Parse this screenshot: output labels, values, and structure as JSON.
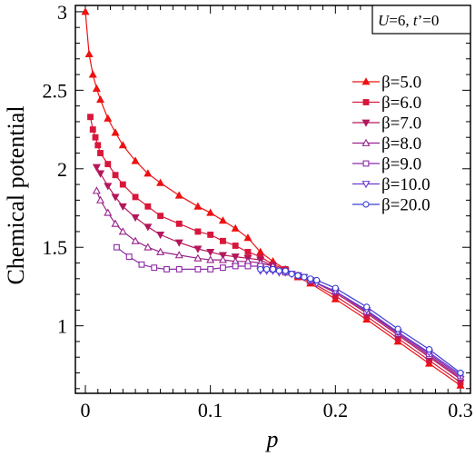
{
  "chart_data": {
    "type": "line",
    "xlabel": "p",
    "ylabel": "Chemical potential",
    "xlim": [
      -0.008,
      0.308
    ],
    "ylim": [
      0.57,
      3.04
    ],
    "x_ticks": [
      0,
      0.1,
      0.2,
      0.3
    ],
    "x_tick_labels": [
      "0",
      "0.1",
      "0.2",
      "0.3"
    ],
    "y_ticks": [
      1,
      1.5,
      2,
      2.5,
      3
    ],
    "y_tick_labels": [
      "1",
      "1.5",
      "2",
      "2.5",
      "3"
    ],
    "annotation": {
      "U": "U",
      "u_rest": "=6, ",
      "t": "t",
      "t_rest": "’=0"
    },
    "legend_position": "right",
    "series": [
      {
        "name": "β=5.0",
        "color": "#ee1111",
        "marker": "triangle-up",
        "x": [
          0.0,
          0.003,
          0.006,
          0.009,
          0.012,
          0.018,
          0.024,
          0.03,
          0.04,
          0.05,
          0.06,
          0.075,
          0.09,
          0.1,
          0.11,
          0.12,
          0.13,
          0.14,
          0.15,
          0.16,
          0.17,
          0.18,
          0.2,
          0.225,
          0.25,
          0.275,
          0.3
        ],
        "y": [
          3.0,
          2.73,
          2.6,
          2.51,
          2.44,
          2.32,
          2.23,
          2.15,
          2.05,
          1.97,
          1.91,
          1.83,
          1.76,
          1.72,
          1.67,
          1.62,
          1.56,
          1.47,
          1.41,
          1.36,
          1.31,
          1.27,
          1.17,
          1.04,
          0.9,
          0.76,
          0.62
        ]
      },
      {
        "name": "β=6.0",
        "color": "#d8173a",
        "marker": "square-filled",
        "x": [
          0.004,
          0.006,
          0.008,
          0.01,
          0.012,
          0.018,
          0.024,
          0.03,
          0.04,
          0.05,
          0.06,
          0.075,
          0.09,
          0.1,
          0.11,
          0.12,
          0.13,
          0.14,
          0.15,
          0.16,
          0.17,
          0.18,
          0.2,
          0.225,
          0.25,
          0.275,
          0.3
        ],
        "y": [
          2.33,
          2.25,
          2.2,
          2.15,
          2.1,
          2.03,
          1.96,
          1.9,
          1.82,
          1.76,
          1.7,
          1.65,
          1.6,
          1.58,
          1.54,
          1.51,
          1.47,
          1.44,
          1.39,
          1.36,
          1.32,
          1.28,
          1.19,
          1.06,
          0.92,
          0.78,
          0.64
        ]
      },
      {
        "name": "β=7.0",
        "color": "#b4175c",
        "marker": "triangle-down",
        "x": [
          0.009,
          0.012,
          0.018,
          0.024,
          0.03,
          0.04,
          0.05,
          0.06,
          0.075,
          0.09,
          0.1,
          0.11,
          0.12,
          0.13,
          0.14,
          0.15,
          0.16,
          0.17,
          0.18,
          0.2,
          0.225,
          0.25,
          0.275,
          0.3
        ],
        "y": [
          2.01,
          1.97,
          1.89,
          1.82,
          1.76,
          1.69,
          1.63,
          1.58,
          1.53,
          1.49,
          1.47,
          1.45,
          1.44,
          1.43,
          1.42,
          1.38,
          1.35,
          1.32,
          1.29,
          1.21,
          1.08,
          0.94,
          0.8,
          0.66
        ]
      },
      {
        "name": "β=8.0",
        "color": "#97218a",
        "marker": "triangle-up-open",
        "x": [
          0.009,
          0.012,
          0.018,
          0.024,
          0.03,
          0.04,
          0.05,
          0.06,
          0.075,
          0.09,
          0.1,
          0.11,
          0.12,
          0.13,
          0.14,
          0.15,
          0.16,
          0.17,
          0.18,
          0.2,
          0.225,
          0.25,
          0.275,
          0.3
        ],
        "y": [
          1.86,
          1.8,
          1.72,
          1.65,
          1.6,
          1.54,
          1.5,
          1.47,
          1.45,
          1.43,
          1.42,
          1.42,
          1.41,
          1.41,
          1.4,
          1.38,
          1.35,
          1.32,
          1.29,
          1.22,
          1.09,
          0.95,
          0.81,
          0.67
        ]
      },
      {
        "name": "β=9.0",
        "color": "#8c2aa8",
        "marker": "square-open",
        "x": [
          0.025,
          0.035,
          0.045,
          0.055,
          0.065,
          0.075,
          0.09,
          0.1,
          0.11,
          0.12,
          0.13,
          0.14,
          0.15,
          0.16,
          0.17,
          0.18,
          0.2,
          0.225,
          0.25,
          0.275,
          0.3
        ],
        "y": [
          1.5,
          1.44,
          1.39,
          1.37,
          1.36,
          1.36,
          1.36,
          1.36,
          1.37,
          1.38,
          1.38,
          1.38,
          1.36,
          1.34,
          1.32,
          1.29,
          1.22,
          1.09,
          0.96,
          0.82,
          0.68
        ]
      },
      {
        "name": "β=10.0",
        "color": "#6b3ad0",
        "marker": "triangle-down-open",
        "x": [
          0.14,
          0.145,
          0.15,
          0.155,
          0.16,
          0.165,
          0.17,
          0.175,
          0.18,
          0.185,
          0.2,
          0.225,
          0.25,
          0.275,
          0.3
        ],
        "y": [
          1.35,
          1.35,
          1.35,
          1.34,
          1.34,
          1.33,
          1.32,
          1.31,
          1.29,
          1.27,
          1.22,
          1.1,
          0.96,
          0.83,
          0.69
        ]
      },
      {
        "name": "β=20.0",
        "color": "#3b3ed6",
        "marker": "circle-open",
        "x": [
          0.14,
          0.145,
          0.15,
          0.155,
          0.16,
          0.165,
          0.17,
          0.175,
          0.18,
          0.185,
          0.2,
          0.225,
          0.25,
          0.275,
          0.3
        ],
        "y": [
          1.36,
          1.36,
          1.36,
          1.35,
          1.35,
          1.33,
          1.32,
          1.31,
          1.3,
          1.29,
          1.24,
          1.12,
          0.98,
          0.85,
          0.7
        ]
      }
    ]
  }
}
